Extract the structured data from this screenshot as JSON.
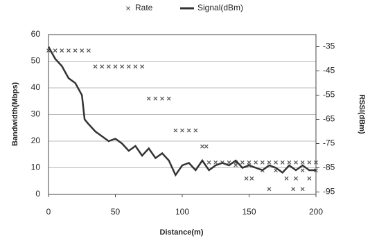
{
  "chart_data": {
    "type": "line",
    "xlabel": "Distance(m)",
    "ylabel": "Bandwidth(Mbps)",
    "y2label": "RSSI(dBm)",
    "xlim": [
      0,
      200
    ],
    "xticks": [
      0,
      50,
      100,
      150,
      200
    ],
    "ylim": [
      0,
      60
    ],
    "yticks": [
      0,
      10,
      20,
      30,
      40,
      50,
      60
    ],
    "y2lim": [
      -30,
      -96
    ],
    "y2ticks": [
      -35,
      -45,
      -55,
      -65,
      -75,
      -85,
      -95
    ],
    "grid": true,
    "legend": "top",
    "series": [
      {
        "name": "Rate",
        "type": "scatter",
        "color": "#555555",
        "x": [
          0,
          5,
          10,
          15,
          20,
          25,
          30,
          35,
          40,
          45,
          50,
          55,
          60,
          65,
          70,
          75,
          80,
          85,
          90,
          95,
          100,
          105,
          110,
          115,
          118,
          120,
          125,
          130,
          135,
          140,
          145,
          150,
          155,
          160,
          165,
          170,
          175,
          180,
          185,
          190,
          195,
          200,
          140,
          150,
          160,
          170,
          190,
          200,
          148,
          152,
          178,
          185,
          195,
          165,
          183,
          190
        ],
        "values": [
          54,
          54,
          54,
          54,
          54,
          54,
          54,
          48,
          48,
          48,
          48,
          48,
          48,
          48,
          48,
          36,
          36,
          36,
          36,
          24,
          24,
          24,
          24,
          18,
          18,
          12,
          12,
          12,
          12,
          12,
          12,
          12,
          12,
          12,
          12,
          12,
          12,
          12,
          12,
          12,
          12,
          12,
          11,
          11,
          9,
          9,
          9,
          9,
          6,
          6,
          6,
          6,
          6,
          2,
          2,
          2
        ]
      },
      {
        "name": "Signal(dBm)",
        "type": "line",
        "axis": "y2",
        "color": "#333333",
        "x": [
          0,
          5,
          10,
          15,
          20,
          25,
          27,
          30,
          35,
          40,
          45,
          50,
          55,
          60,
          65,
          70,
          75,
          80,
          85,
          90,
          95,
          100,
          105,
          110,
          115,
          120,
          125,
          130,
          135,
          140,
          145,
          150,
          155,
          160,
          165,
          170,
          175,
          180,
          185,
          190,
          195,
          200
        ],
        "values": [
          -35,
          -40,
          -43,
          -48,
          -50,
          -55,
          -65,
          -67,
          -70,
          -72,
          -74,
          -73,
          -75,
          -78,
          -76,
          -80,
          -77,
          -81,
          -79,
          -82,
          -88,
          -84,
          -83,
          -86,
          -82,
          -86,
          -84,
          -83,
          -84,
          -82,
          -85,
          -84,
          -85,
          -86,
          -84,
          -85,
          -87,
          -84,
          -86,
          -84,
          -86,
          -86
        ]
      }
    ]
  }
}
